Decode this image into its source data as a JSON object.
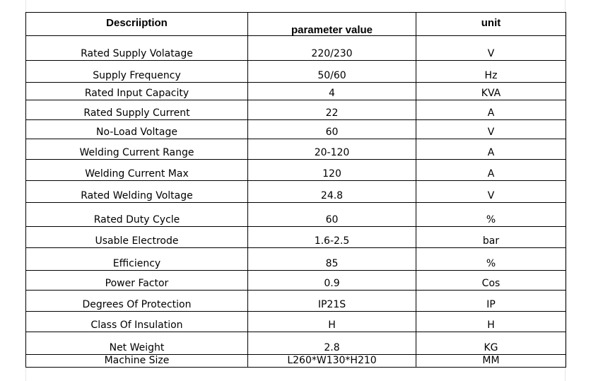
{
  "table": {
    "headers": [
      "Descriiption",
      "parameter value",
      "unit"
    ],
    "rows": [
      [
        "Rated Supply Volatage",
        "220/230",
        "V"
      ],
      [
        "Supply Frequency",
        "50/60",
        "Hz"
      ],
      [
        "Rated Input Capacity",
        "4",
        "KVA"
      ],
      [
        "Rated Supply Current",
        "22",
        "A"
      ],
      [
        "No-Load Voltage",
        "60",
        "V"
      ],
      [
        "Welding Current Range",
        "20-120",
        "A"
      ],
      [
        "Welding Current Max",
        "120",
        "A"
      ],
      [
        "Rated Welding Voltage",
        "24.8",
        "V"
      ],
      [
        "Rated Duty Cycle",
        "60",
        "%"
      ],
      [
        "Usable Electrode",
        "1.6-2.5",
        "bar"
      ],
      [
        "Efficiency",
        "85",
        "%"
      ],
      [
        "Power Factor",
        "0.9",
        "Cos"
      ],
      [
        "Degrees Of Protection",
        "IP21S",
        "IP"
      ],
      [
        "Class Of Insulation",
        "H",
        "H"
      ],
      [
        "Net Weight",
        "2.8",
        "KG"
      ],
      [
        "Machine Size",
        "L260*W130*H210",
        "MM"
      ]
    ]
  }
}
